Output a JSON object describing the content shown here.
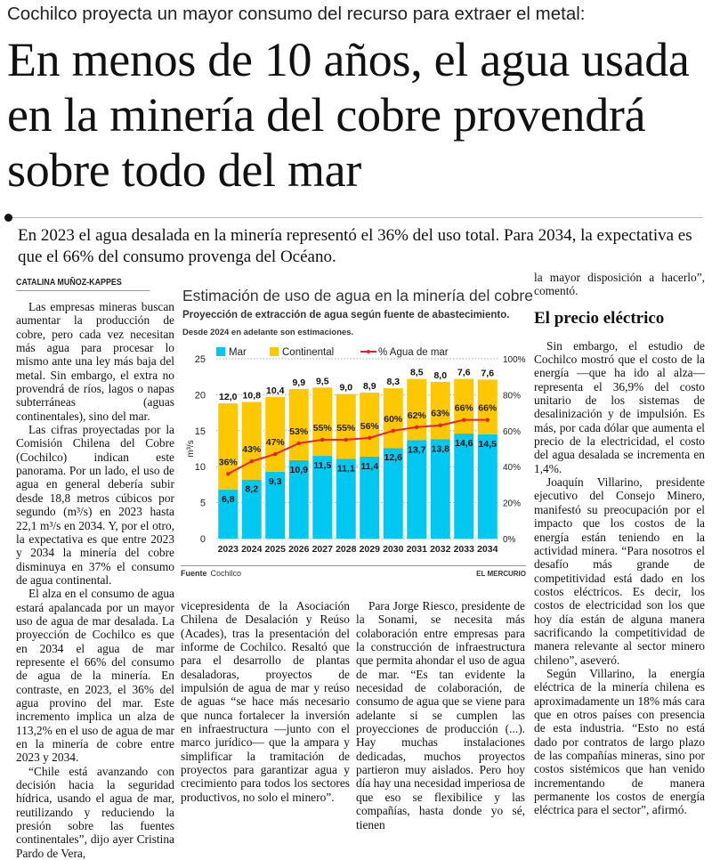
{
  "kicker": "Cochilco proyecta un mayor consumo del recurso para extraer el metal:",
  "headline": "En menos de 10 años, el agua usada en la minería del cobre provendrá sobre todo del mar",
  "deck": "En 2023 el agua desalada en la minería representó el 36% del uso total. Para 2034, la expectativa es que el 66% del consumo provenga del Océano.",
  "byline": "CATALINA MUÑOZ-KAPPES",
  "columns": {
    "col1": [
      "Las empresas mineras buscan aumentar la producción de cobre, pero cada vez necesitan más agua para procesar lo mismo ante una ley más baja del metal. Sin embargo, el extra no provendrá de ríos, lagos o napas subterráneas (aguas continentales), sino del mar.",
      "Las cifras proyectadas por la Comisión Chilena del Cobre (Cochilco) indican este panorama. Por un lado, el uso de agua en general debería subir desde 18,8 metros cúbicos por segundo (m³/s) en 2023 hasta 22,1 m³/s en 2034. Y, por el otro, la expectativa es que entre 2023 y 2034 la minería del cobre disminuya en 37% el consumo de agua continental.",
      "El alza en el consumo de agua estará apalancada por un mayor uso de agua de mar desalada. La proyección de Cochilco es que en 2034 el agua de mar represente el 66% del consumo de agua de la minería. En contraste, en 2023, el 36% del agua provino del mar. Este incremento implica un alza de 113,2% en el uso de agua de mar en la minería de cobre entre 2023 y 2034.",
      "“Chile está avanzando con decisión hacia la seguridad hídrica, usando el agua de mar, reutilizando y reduciendo la presión sobre las fuentes continentales”, dijo ayer Cristina Pardo de Vera,"
    ],
    "col2": [
      "vicepresidenta de la Asociación Chilena de Desalación y Reúso (Acades), tras la presentación del informe de Cochilco. Resaltó que para el desarrollo de plantas desaladoras, proyectos de impulsión de agua de mar y reúso de aguas “se hace más necesario que nunca fortalecer la inversión en infraestructura —junto con el marco jurídico— que la ampara y simplificar la tramitación de proyectos para garantizar agua y crecimiento para todos los sectores productivos, no solo el minero”."
    ],
    "col3": [
      "Para Jorge Riesco, presidente de la Sonami, se necesita más colaboración entre empresas para la construcción de infraestructura que permita ahondar el uso de agua de mar. “Es tan evidente la necesidad de colaboración, de consumo de agua que se viene para adelante si se cumplen las proyecciones de producción (...). Hay muchas instalaciones dedicadas, muchos proyectos partieron muy aislados. Pero hoy día hay una necesidad imperiosa de que eso se flexibilice y las compañías, hasta donde yo sé, tienen"
    ],
    "col4_lead": "la mayor disposición a hacerlo”, comentó.",
    "col4_subhead": "El precio eléctrico",
    "col4": [
      "Sin embargo, el estudio de Cochilco mostró que el costo de la energía —que ha ido al alza— representa el 36,9% del costo unitario de los sistemas de desalinización y de impulsión. Es más, por cada dólar que aumenta el precio de la electricidad, el costo del agua desalada se incrementa en 1,4%.",
      "Joaquín Villarino, presidente ejecutivo del Consejo Minero, manifestó su preocupación por el impacto que los costos de la energía están teniendo en la actividad minera. “Para nosotros el desafío más grande de competitividad está dado en los costos eléctricos. Es decir, los costos de electricidad son los que hoy día están de alguna manera sacrificando la competitividad de manera relevante al sector minero chileno”, aseveró.",
      "Según Villarino, la energía eléctrica de la minería chilena es aproximadamente un 18% más cara que en otros países con presencia de esta industria. “Esto no está dado por contratos de largo plazo de las compañías mineras, sino por costos sistémicos que han venido incrementando de manera permanente los costos de energía eléctrica para el sector”, afirmó."
    ]
  },
  "chart_data": {
    "type": "bar",
    "stacked": true,
    "title": "Estimación de uso de agua en la minería del cobre",
    "subtitle": "Proyección de extracción de agua según fuente de abastecimiento.",
    "note": "Desde 2024 en adelante son estimaciones.",
    "ylabel": "m³/s",
    "ylim": [
      0,
      25
    ],
    "yticks": [
      "0",
      "5",
      "10",
      "15",
      "20",
      "25"
    ],
    "y2lim": [
      0,
      100
    ],
    "y2ticks": [
      "0%",
      "20%",
      "40%",
      "60%",
      "80%",
      "100%"
    ],
    "grid": true,
    "legend_position": "top",
    "categories": [
      "2023",
      "2024",
      "2025",
      "2026",
      "2027",
      "2028",
      "2029",
      "2030",
      "2031",
      "2032",
      "2033",
      "2034"
    ],
    "series": [
      {
        "name": "Mar",
        "color": "#00c8f0",
        "values": [
          6.8,
          8.2,
          9.3,
          10.9,
          11.5,
          11.1,
          11.4,
          12.6,
          13.7,
          13.8,
          14.6,
          14.5
        ],
        "labels": [
          "6,8",
          "8,2",
          "9,3",
          "10,9",
          "11,5",
          "11,1",
          "11,4",
          "12,6",
          "13,7",
          "13,8",
          "14,6",
          "14,5"
        ]
      },
      {
        "name": "Continental",
        "color": "#fec800",
        "values": [
          12.0,
          10.8,
          10.4,
          9.9,
          9.5,
          9.0,
          8.9,
          8.3,
          8.5,
          8.0,
          7.6,
          7.6
        ],
        "labels": [
          "12,0",
          "10,8",
          "10,4",
          "9,9",
          "9,5",
          "9,0",
          "8,9",
          "8,3",
          "8,5",
          "8,0",
          "7,6",
          "7,6"
        ]
      },
      {
        "name": "% Agua de mar",
        "type": "line",
        "axis": "right",
        "color": "#e8202a",
        "values": [
          36,
          43,
          47,
          53,
          55,
          55,
          56,
          60,
          62,
          63,
          66,
          66
        ],
        "labels": [
          "36%",
          "43%",
          "47%",
          "53%",
          "55%",
          "55%",
          "56%",
          "60%",
          "62%",
          "63%",
          "66%",
          "66%"
        ]
      }
    ],
    "source_label": "Fuente",
    "source": "Cochilco",
    "credit": "EL MERCURIO"
  }
}
